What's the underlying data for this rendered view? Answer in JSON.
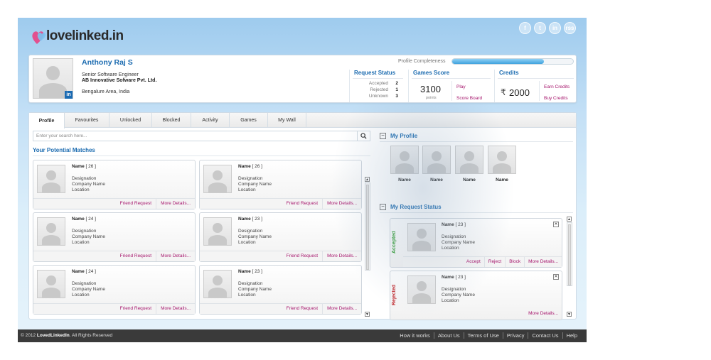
{
  "brand": {
    "logo_text": "lovelinked.in"
  },
  "social": [
    "f",
    "t",
    "in",
    "rss"
  ],
  "profile": {
    "name": "Anthony Raj S",
    "designation": "Senior Software Engineer",
    "company": "AB Innovative Sofware Pvt. Ltd.",
    "location": "Bengalure Area, India",
    "badge": "in",
    "completeness_label": "Profile Completeness",
    "completeness_fraction": 0.76
  },
  "request_status": {
    "title": "Request Status",
    "rows": [
      {
        "label": "Accepted",
        "value": "2"
      },
      {
        "label": "Rejected",
        "value": "1"
      },
      {
        "label": "Unknown",
        "value": "3"
      }
    ]
  },
  "games": {
    "title": "Games Score",
    "score": "3100",
    "unit": "points",
    "play": "Play",
    "scoreboard": "Score Board"
  },
  "credits": {
    "title": "Credits",
    "currency": "₹",
    "amount": "2000",
    "earn": "Earn Credits",
    "buy": "Buy Credits"
  },
  "tabs": [
    "Profile",
    "Favourites",
    "Unlocked",
    "Blocked",
    "Activity",
    "Games",
    "My Wall"
  ],
  "search": {
    "placeholder": "Enter your search here..."
  },
  "matches": {
    "title": "Your Potential Matches",
    "cards": [
      {
        "name": "Name",
        "age": "[ 26 ]",
        "designation": "Designation",
        "company": "Company Name",
        "location": "Location",
        "action1": "Friend Request",
        "action2": "More Details..."
      },
      {
        "name": "Name",
        "age": "[ 26 ]",
        "designation": "Designation",
        "company": "Company Name",
        "location": "Location",
        "action1": "Friend Request",
        "action2": "More Details..."
      },
      {
        "name": "Name",
        "age": "[ 24 ]",
        "designation": "Designation",
        "company": "Company Name",
        "location": "Location",
        "action1": "Friend Request",
        "action2": "More Details..."
      },
      {
        "name": "Name",
        "age": "[ 23 ]",
        "designation": "Designation",
        "company": "Company Name",
        "location": "Location",
        "action1": "Friend Request",
        "action2": "More Details..."
      },
      {
        "name": "Name",
        "age": "[ 24 ]",
        "designation": "Designation",
        "company": "Company Name",
        "location": "Location",
        "action1": "Friend Request",
        "action2": "More Details..."
      },
      {
        "name": "Name",
        "age": "[ 23 ]",
        "designation": "Designation",
        "company": "Company Name",
        "location": "Location",
        "action1": "Friend Request",
        "action2": "More Details..."
      }
    ]
  },
  "my_profile": {
    "title": "My Profile",
    "thumbs": [
      "Name",
      "Name",
      "Name",
      "Name"
    ]
  },
  "my_request_status": {
    "title": "My Request Status",
    "cards": [
      {
        "status": "Accepted",
        "status_color": "#2e9b2e",
        "name": "Name",
        "age": "[ 23 ]",
        "designation": "Designation",
        "company": "Company Name",
        "location": "Location",
        "actions": [
          "Accept",
          "Reject",
          "Block",
          "More Details..."
        ]
      },
      {
        "status": "Rejected",
        "status_color": "#c0282d",
        "name": "Name",
        "age": "[ 23 ]",
        "designation": "Designation",
        "company": "Company Name",
        "location": "Location",
        "actions": [
          "More Details..."
        ]
      }
    ]
  },
  "footer": {
    "copyright_prefix": "© 2012",
    "copyright_brand": "LovedLinkedIn",
    "copyright_suffix": ". All Rights Reserved",
    "links": [
      "How it works",
      "About Us",
      "Terms of Use",
      "Privacy",
      "Contact Us",
      "Help"
    ]
  },
  "colors": {
    "accent": "#1b6bb0",
    "link": "#a6156c"
  }
}
